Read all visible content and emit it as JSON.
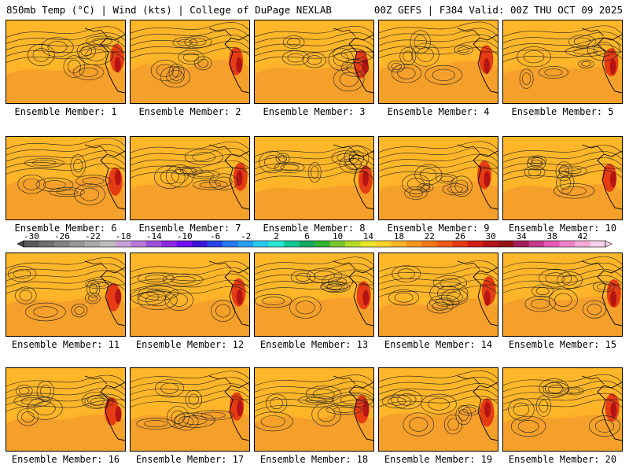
{
  "header": {
    "left_title": "850mb Temp (°C) | Wind (kts) | College of DuPage NEXLAB",
    "right_title": "00Z GEFS | F384 Valid: 00Z THU OCT 09 2025"
  },
  "panels": [
    {
      "label": "Ensemble Member: 1"
    },
    {
      "label": "Ensemble Member: 2"
    },
    {
      "label": "Ensemble Member: 3"
    },
    {
      "label": "Ensemble Member: 4"
    },
    {
      "label": "Ensemble Member: 5"
    },
    {
      "label": "Ensemble Member: 6"
    },
    {
      "label": "Ensemble Member: 7"
    },
    {
      "label": "Ensemble Member: 8"
    },
    {
      "label": "Ensemble Member: 9"
    },
    {
      "label": "Ensemble Member: 10"
    },
    {
      "label": "Ensemble Member: 11"
    },
    {
      "label": "Ensemble Member: 12"
    },
    {
      "label": "Ensemble Member: 13"
    },
    {
      "label": "Ensemble Member: 14"
    },
    {
      "label": "Ensemble Member: 15"
    },
    {
      "label": "Ensemble Member: 16"
    },
    {
      "label": "Ensemble Member: 17"
    },
    {
      "label": "Ensemble Member: 18"
    },
    {
      "label": "Ensemble Member: 19"
    },
    {
      "label": "Ensemble Member: 20"
    }
  ],
  "colorbar": {
    "labels": [
      "-30",
      "-26",
      "-22",
      "-18",
      "-14",
      "-10",
      "-6",
      "-2",
      "2",
      "6",
      "10",
      "14",
      "18",
      "22",
      "26",
      "30",
      "34",
      "38",
      "42"
    ],
    "colors": [
      "#5a5a5a",
      "#6e6e6e",
      "#828282",
      "#969696",
      "#aaaaaa",
      "#bdbdbd",
      "#c8a0d8",
      "#b878d8",
      "#a050d8",
      "#8c28e0",
      "#7010f0",
      "#3c14d8",
      "#2846e6",
      "#2878f0",
      "#28a0f0",
      "#28c8f0",
      "#28e6d2",
      "#14c896",
      "#14aa64",
      "#32b432",
      "#78c832",
      "#b4dc28",
      "#e6e628",
      "#ffd228",
      "#ffb428",
      "#fa961e",
      "#f57814",
      "#f05a14",
      "#e63c14",
      "#d21e14",
      "#b41414",
      "#961414",
      "#a01e5a",
      "#c83c8c",
      "#e65ab4",
      "#f082c8",
      "#f5aad8",
      "#fad2ea"
    ]
  }
}
